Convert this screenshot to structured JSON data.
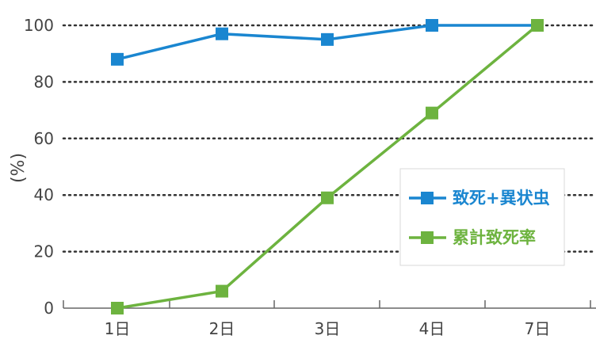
{
  "chart_data": {
    "type": "line",
    "categories": [
      "1日",
      "2日",
      "3日",
      "4日",
      "7日"
    ],
    "ylabel": "(%)",
    "ylim": [
      0,
      100
    ],
    "yticks": [
      0,
      20,
      40,
      60,
      80,
      100
    ],
    "grid": "horizontal dotted",
    "legend_position": "center-right",
    "series": [
      {
        "name": "致死+異状虫",
        "values": [
          88,
          97,
          95,
          100,
          100
        ],
        "color": "#1a86d0",
        "marker": "square"
      },
      {
        "name": "累計致死率",
        "values": [
          0,
          6,
          39,
          69,
          100
        ],
        "color": "#6db33f",
        "marker": "square"
      }
    ]
  }
}
